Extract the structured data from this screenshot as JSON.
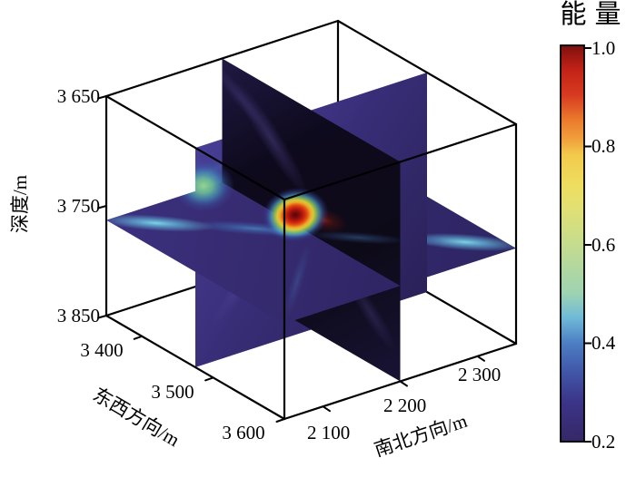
{
  "figure": {
    "axes": {
      "depth": {
        "label": "深度/m",
        "ticks": [
          "3 650",
          "3 750",
          "3 850"
        ]
      },
      "ew": {
        "label": "东西方向/m",
        "ticks": [
          "3 400",
          "3 500",
          "3 600"
        ]
      },
      "ns": {
        "label": "南北方向/m",
        "ticks": [
          "2 100",
          "2 200",
          "2 300"
        ]
      }
    },
    "colorbar": {
      "title": "能量",
      "ticks": [
        "1.0",
        "0.8",
        "0.6",
        "0.4",
        "0.2"
      ]
    }
  },
  "chart_data": {
    "type": "heatmap",
    "subtype": "3d-orthogonal-slice-volume",
    "description": "Normalized seismic source energy imaged on three orthogonal slices through a 3D volume; bright focal spot at the slice intersection, cyan streaks radiating along the horizontal slice.",
    "axes": {
      "depth": {
        "label": "深度/m",
        "range": [
          3650,
          3850
        ],
        "tick_values": [
          3650,
          3750,
          3850
        ],
        "direction": "downward"
      },
      "ew": {
        "label": "东西方向/m",
        "range": [
          3350,
          3600
        ],
        "tick_values": [
          3400,
          3500,
          3600
        ]
      },
      "ns": {
        "label": "南北方向/m",
        "range": [
          2050,
          2350
        ],
        "tick_values": [
          2100,
          2200,
          2300
        ]
      }
    },
    "slices": {
      "ew": 3475,
      "ns": 2200,
      "depth": 3763
    },
    "hotspot": {
      "ew": 3490,
      "ns": 2190,
      "depth": 3760,
      "value": 1.0
    },
    "background_energy": 0.2,
    "colorbar": {
      "label": "能量",
      "range": [
        0.2,
        1.0
      ],
      "tick_values": [
        1.0,
        0.8,
        0.6,
        0.4,
        0.2
      ],
      "position": "right"
    },
    "colormap_stops": [
      [
        0.2,
        "#352866"
      ],
      [
        0.28,
        "#3b3488"
      ],
      [
        0.34,
        "#4156a8"
      ],
      [
        0.4,
        "#4d7fc4"
      ],
      [
        0.45,
        "#6fb9d8"
      ],
      [
        0.5,
        "#9ed3b2"
      ],
      [
        0.6,
        "#c6dc8e"
      ],
      [
        0.68,
        "#e4e070"
      ],
      [
        0.72,
        "#eedd5e"
      ],
      [
        0.78,
        "#f2c94b"
      ],
      [
        0.81,
        "#f0a03c"
      ],
      [
        0.85,
        "#ea7a2c"
      ],
      [
        0.9,
        "#d73a20"
      ],
      [
        0.95,
        "#c32317"
      ],
      [
        0.98,
        "#9c1712"
      ],
      [
        1.0,
        "#7a100e"
      ]
    ],
    "grid": false,
    "legend": "none"
  }
}
